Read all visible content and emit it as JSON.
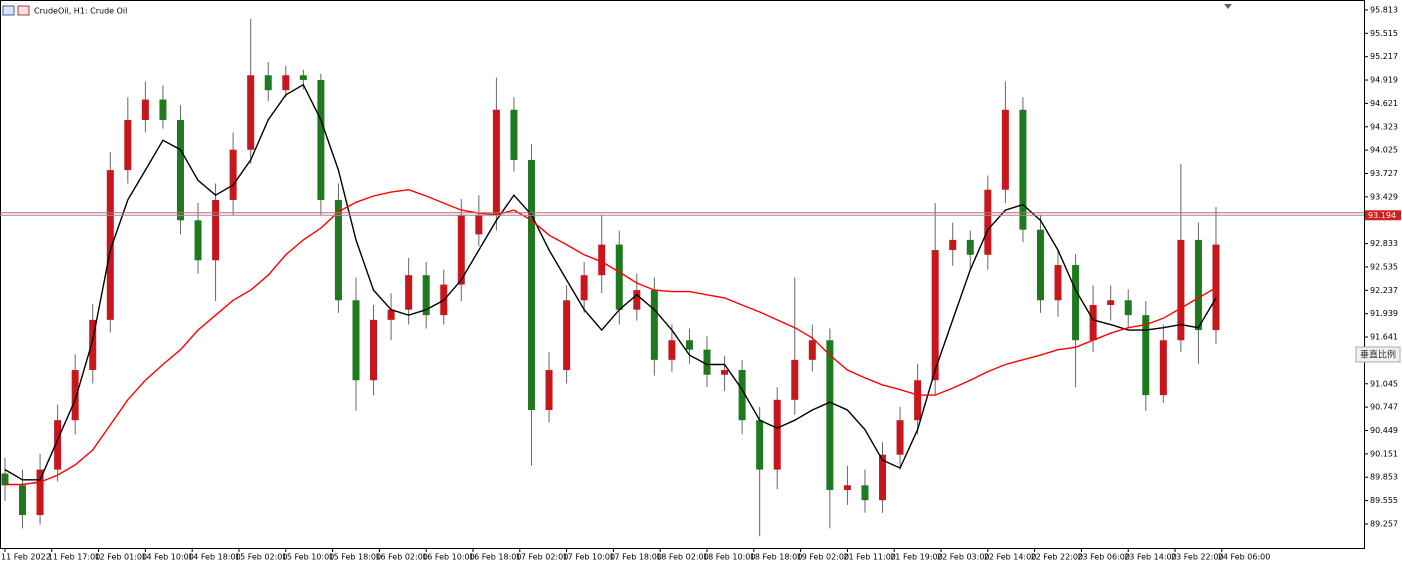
{
  "chart_data": {
    "type": "candlestick",
    "title": "CrudeOil, H1:  Crude Oil",
    "x": [
      0,
      3,
      6,
      9,
      12,
      15,
      18,
      21,
      24,
      27,
      30,
      33,
      36,
      39,
      42,
      45,
      48,
      51,
      54,
      57,
      60,
      63,
      66,
      69,
      72,
      75,
      78,
      81,
      84,
      87,
      90,
      93,
      96,
      99,
      102,
      105,
      108,
      111,
      114,
      117,
      120,
      123,
      126,
      129,
      132,
      135,
      138,
      141,
      144,
      147,
      150,
      153,
      156,
      159,
      162,
      165,
      168,
      171,
      174,
      177,
      180,
      183,
      186,
      189,
      192,
      195,
      198,
      201,
      204,
      207
    ],
    "open": [
      89.9,
      89.75,
      89.37,
      89.95,
      90.58,
      91.22,
      91.86,
      93.77,
      94.41,
      94.67,
      94.41,
      93.13,
      92.62,
      93.39,
      94.03,
      94.98,
      94.79,
      94.98,
      94.92,
      93.39,
      92.11,
      91.09,
      91.86,
      91.99,
      92.43,
      91.92,
      92.31,
      92.95,
      93.2,
      94.54,
      93.9,
      90.71,
      91.22,
      92.11,
      92.43,
      92.82,
      91.99,
      92.24,
      91.35,
      91.6,
      91.48,
      91.16,
      91.22,
      90.58,
      89.95,
      90.84,
      91.35,
      91.6,
      89.69,
      89.75,
      89.56,
      90.14,
      90.58,
      91.09,
      92.75,
      92.88,
      92.69,
      93.52,
      94.54,
      93.01,
      92.11,
      92.56,
      91.6,
      92.05,
      92.11,
      91.92,
      90.9,
      91.6,
      92.88,
      91.73
    ],
    "high": [
      90.1,
      89.95,
      90.15,
      90.78,
      91.42,
      92.06,
      94.0,
      94.7,
      94.9,
      94.85,
      94.6,
      93.35,
      93.6,
      94.25,
      95.7,
      95.15,
      95.1,
      95.05,
      95.0,
      93.6,
      92.4,
      92.05,
      92.2,
      92.65,
      92.6,
      92.5,
      93.4,
      93.45,
      94.95,
      94.7,
      94.1,
      91.45,
      92.3,
      92.6,
      93.2,
      93.0,
      92.45,
      92.4,
      91.8,
      91.75,
      91.65,
      91.4,
      91.35,
      90.75,
      91.0,
      92.4,
      91.8,
      91.75,
      90.0,
      89.95,
      90.3,
      90.75,
      91.3,
      93.35,
      93.1,
      93.0,
      93.7,
      94.9,
      94.7,
      93.2,
      92.75,
      92.7,
      92.3,
      92.3,
      92.25,
      92.1,
      91.8,
      93.85,
      93.1,
      93.3
    ],
    "low": [
      89.55,
      89.2,
      89.25,
      89.8,
      90.4,
      91.05,
      91.7,
      93.6,
      94.25,
      94.3,
      92.95,
      92.45,
      92.1,
      93.2,
      93.85,
      94.65,
      94.7,
      94.8,
      93.2,
      91.95,
      90.7,
      90.9,
      91.6,
      91.8,
      91.75,
      91.8,
      92.1,
      92.8,
      93.0,
      93.75,
      90.0,
      90.55,
      91.05,
      91.95,
      92.2,
      91.8,
      91.85,
      91.15,
      91.2,
      91.3,
      91.0,
      90.95,
      90.4,
      89.1,
      89.7,
      90.65,
      91.2,
      89.2,
      89.5,
      89.4,
      89.4,
      89.95,
      90.4,
      90.9,
      92.55,
      92.5,
      92.5,
      93.35,
      92.85,
      91.95,
      91.9,
      91.0,
      91.45,
      91.85,
      91.75,
      90.7,
      90.8,
      91.45,
      91.3,
      91.55
    ],
    "close": [
      89.75,
      89.37,
      89.95,
      90.58,
      91.22,
      91.86,
      93.77,
      94.41,
      94.67,
      94.41,
      93.13,
      92.62,
      93.39,
      94.03,
      94.98,
      94.79,
      94.98,
      94.92,
      93.39,
      92.11,
      91.09,
      91.86,
      91.99,
      92.43,
      91.92,
      92.31,
      93.2,
      93.2,
      94.54,
      93.9,
      90.71,
      91.22,
      92.11,
      92.43,
      92.82,
      91.99,
      92.24,
      91.35,
      91.6,
      91.48,
      91.16,
      91.22,
      90.58,
      89.95,
      90.84,
      91.35,
      91.6,
      89.69,
      89.75,
      89.56,
      90.14,
      90.58,
      91.09,
      92.75,
      92.88,
      92.69,
      93.52,
      94.54,
      93.01,
      92.11,
      92.56,
      91.6,
      92.05,
      92.11,
      91.92,
      90.9,
      91.6,
      92.88,
      91.73,
      92.82
    ],
    "up_color": "#c8161d",
    "down_color": "#1f7a1f",
    "wick_color": "#666666",
    "series": [
      {
        "color": "#000000",
        "values": [
          89.95,
          89.82,
          89.82,
          90.33,
          90.84,
          91.6,
          92.75,
          93.39,
          93.77,
          94.15,
          94.03,
          93.64,
          93.45,
          93.58,
          93.9,
          94.41,
          94.73,
          94.86,
          94.41,
          93.77,
          92.88,
          92.24,
          91.99,
          91.92,
          91.99,
          92.11,
          92.37,
          92.75,
          93.13,
          93.45,
          93.2,
          92.75,
          92.37,
          91.99,
          91.73,
          91.99,
          92.18,
          91.99,
          91.73,
          91.41,
          91.29,
          91.29,
          90.97,
          90.58,
          90.48,
          90.58,
          90.71,
          90.81,
          90.71,
          90.46,
          90.07,
          89.97,
          90.46,
          91.22,
          91.86,
          92.5,
          93.01,
          93.26,
          93.33,
          93.13,
          92.75,
          92.24,
          91.86,
          91.8,
          91.73,
          91.73,
          91.76,
          91.8,
          91.76,
          92.14
        ]
      },
      {
        "color": "#ff0000",
        "values": [
          89.76,
          89.76,
          89.79,
          89.88,
          90.01,
          90.2,
          90.52,
          90.84,
          91.09,
          91.29,
          91.48,
          91.73,
          91.92,
          92.11,
          92.24,
          92.43,
          92.69,
          92.88,
          93.03,
          93.24,
          93.36,
          93.44,
          93.49,
          93.52,
          93.44,
          93.35,
          93.26,
          93.22,
          93.2,
          93.26,
          93.13,
          92.94,
          92.82,
          92.69,
          92.6,
          92.47,
          92.33,
          92.24,
          92.22,
          92.22,
          92.18,
          92.14,
          92.05,
          91.96,
          91.86,
          91.76,
          91.63,
          91.41,
          91.22,
          91.12,
          91.03,
          90.97,
          90.9,
          90.9,
          90.99,
          91.09,
          91.2,
          91.29,
          91.35,
          91.41,
          91.48,
          91.51,
          91.6,
          91.69,
          91.76,
          91.8,
          91.88,
          92.01,
          92.14,
          92.27
        ]
      }
    ],
    "xlim": [
      -0.85,
      232.3
    ],
    "xticks": [
      {
        "value": 0,
        "label": "11 Feb 2022"
      },
      {
        "value": 8,
        "label": "11 Feb 17:00"
      },
      {
        "value": 16,
        "label": "12 Feb 01:00"
      },
      {
        "value": 24,
        "label": "14 Feb 10:00"
      },
      {
        "value": 32,
        "label": "14 Feb 18:00"
      },
      {
        "value": 40,
        "label": "15 Feb 02:00"
      },
      {
        "value": 48,
        "label": "15 Feb 10:00"
      },
      {
        "value": 56,
        "label": "15 Feb 18:00"
      },
      {
        "value": 64,
        "label": "16 Feb 02:00"
      },
      {
        "value": 72,
        "label": "16 Feb 10:00"
      },
      {
        "value": 80,
        "label": "16 Feb 18:00"
      },
      {
        "value": 88,
        "label": "17 Feb 02:00"
      },
      {
        "value": 96,
        "label": "17 Feb 10:00"
      },
      {
        "value": 104,
        "label": "17 Feb 18:00"
      },
      {
        "value": 112,
        "label": "18 Feb 02:00"
      },
      {
        "value": 120,
        "label": "18 Feb 10:00"
      },
      {
        "value": 128,
        "label": "18 Feb 18:00"
      },
      {
        "value": 136,
        "label": "19 Feb 02:00"
      },
      {
        "value": 144,
        "label": "21 Feb 11:00"
      },
      {
        "value": 152,
        "label": "21 Feb 19:00"
      },
      {
        "value": 160,
        "label": "22 Feb 03:00"
      },
      {
        "value": 168,
        "label": "22 Feb 14:00"
      },
      {
        "value": 176,
        "label": "22 Feb 22:00"
      },
      {
        "value": 184,
        "label": "23 Feb 06:00"
      },
      {
        "value": 192,
        "label": "23 Feb 14:00"
      },
      {
        "value": 200,
        "label": "23 Feb 22:00"
      },
      {
        "value": 208,
        "label": "24 Feb 06:00"
      }
    ],
    "ylim": [
      88.95,
      95.94
    ],
    "yticks": [
      95.813,
      95.515,
      95.217,
      94.919,
      94.621,
      94.323,
      94.025,
      93.727,
      93.429,
      92.833,
      92.535,
      92.237,
      91.939,
      91.641,
      91.045,
      90.747,
      90.449,
      90.151,
      89.853,
      89.555,
      89.257
    ],
    "last_price": 93.194,
    "ask_price": 93.227,
    "scale_button": "垂直比例"
  }
}
